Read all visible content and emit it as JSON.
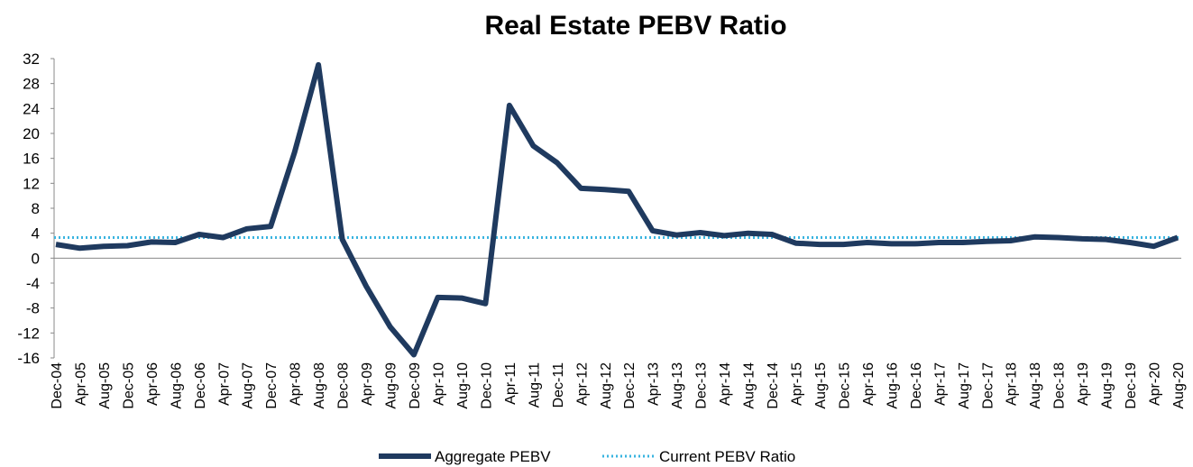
{
  "chart_data": {
    "type": "line",
    "title": "Real Estate PEBV Ratio",
    "categories": [
      "Dec-04",
      "Apr-05",
      "Aug-05",
      "Dec-05",
      "Apr-06",
      "Aug-06",
      "Dec-06",
      "Apr-07",
      "Aug-07",
      "Dec-07",
      "Apr-08",
      "Aug-08",
      "Dec-08",
      "Apr-09",
      "Aug-09",
      "Dec-09",
      "Apr-10",
      "Aug-10",
      "Dec-10",
      "Apr-11",
      "Aug-11",
      "Dec-11",
      "Apr-12",
      "Aug-12",
      "Dec-12",
      "Apr-13",
      "Aug-13",
      "Dec-13",
      "Apr-14",
      "Aug-14",
      "Dec-14",
      "Apr-15",
      "Aug-15",
      "Dec-15",
      "Apr-16",
      "Aug-16",
      "Dec-16",
      "Apr-17",
      "Aug-17",
      "Dec-17",
      "Apr-18",
      "Aug-18",
      "Dec-18",
      "Apr-19",
      "Aug-19",
      "Dec-19",
      "Apr-20",
      "Aug-20"
    ],
    "series": [
      {
        "name": "Aggregate PEBV",
        "color": "#1f3a5f",
        "values": [
          2.2,
          1.6,
          1.9,
          2.0,
          2.6,
          2.5,
          3.8,
          3.3,
          4.7,
          5.1,
          17.0,
          31.0,
          3.0,
          -4.5,
          -11.0,
          -15.5,
          -6.3,
          -6.4,
          -7.3,
          24.5,
          18.0,
          15.3,
          11.2,
          11.0,
          10.7,
          4.4,
          3.7,
          4.1,
          3.6,
          4.0,
          3.8,
          2.4,
          2.2,
          2.2,
          2.5,
          2.3,
          2.3,
          2.5,
          2.5,
          2.7,
          2.8,
          3.4,
          3.3,
          3.1,
          3.0,
          2.5,
          1.9,
          3.3
        ]
      }
    ],
    "reference": {
      "name": "Current PEBV Ratio",
      "value": 3.3,
      "color": "#3ab4e0"
    },
    "ylim": [
      -16,
      32
    ],
    "yticks": [
      -16,
      -12,
      -8,
      -4,
      0,
      4,
      8,
      12,
      16,
      20,
      24,
      28,
      32
    ],
    "legend": "bottom"
  }
}
